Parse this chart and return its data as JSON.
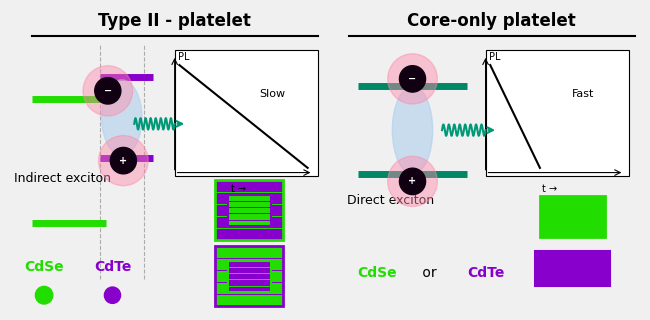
{
  "left_title": "Type II - platelet",
  "right_title": "Core-only platelet",
  "left_exciton_label": "Indirect exciton",
  "right_exciton_label": "Direct exciton",
  "left_decay": "Slow",
  "right_decay": "Fast",
  "pl_label": "PL",
  "t_label": "t →",
  "cdse_label": "CdSe",
  "cdte_label": "CdTe",
  "or_label": " or ",
  "green": "#22dd00",
  "purple": "#8800cc",
  "teal": "#009977",
  "bg_color": "#f0f0f0",
  "panel_bg": "#ffffff"
}
